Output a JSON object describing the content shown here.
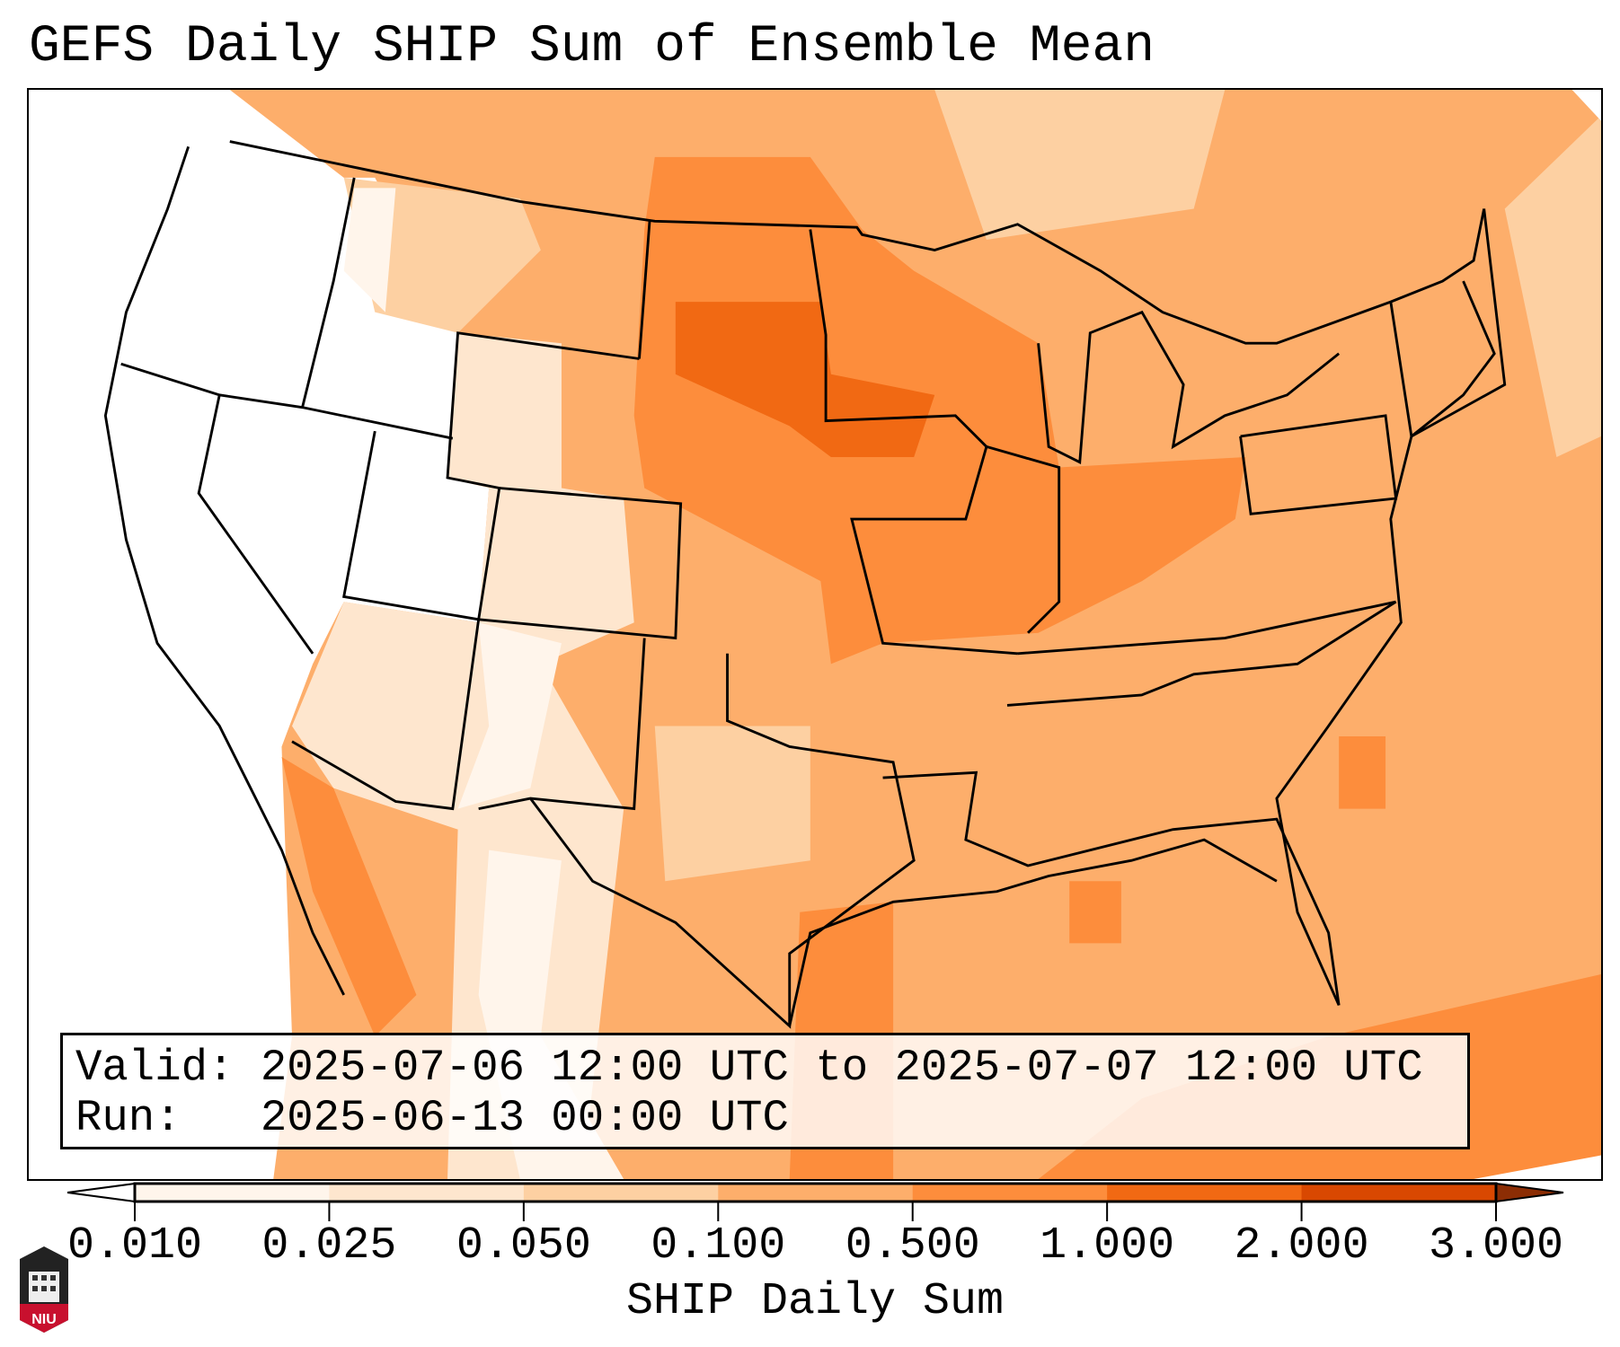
{
  "title": "GEFS Daily SHIP Sum of Ensemble Mean",
  "info": {
    "valid_line": "Valid: 2025-07-06 12:00 UTC to 2025-07-07 12:00 UTC",
    "run_line": "Run:   2025-06-13 00:00 UTC"
  },
  "colorbar": {
    "label": "SHIP Daily Sum",
    "ticks": [
      "0.010",
      "0.025",
      "0.050",
      "0.100",
      "0.500",
      "1.000",
      "2.000",
      "3.000"
    ],
    "colors": [
      "#fff5eb",
      "#fee6ce",
      "#fdd0a2",
      "#fdae6b",
      "#fd8d3c",
      "#f16913",
      "#d94801"
    ],
    "under_color": "#ffffff",
    "over_color": "#8c2d04"
  },
  "logo": {
    "text": "NIU"
  }
}
